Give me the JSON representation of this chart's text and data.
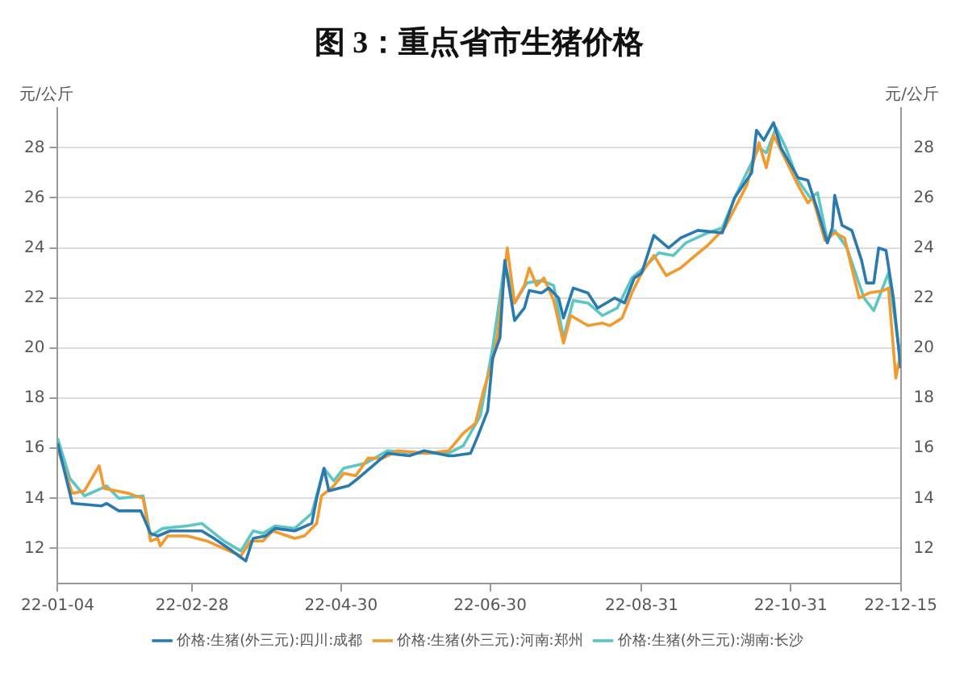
{
  "chart_data": {
    "type": "line",
    "title": "图 3：重点省市生猪价格",
    "ylabel": "元/公斤",
    "y2label": "元/公斤",
    "xlim": [
      "--01-04",
      "--12-15"
    ],
    "xticks": [
      {
        "value": "--01-04",
        "label": "22-01-04"
      },
      {
        "value": "--02-28",
        "label": "22-02-28"
      },
      {
        "value": "--04-30",
        "label": "22-04-30"
      },
      {
        "value": "--06-30",
        "label": "22-06-30"
      },
      {
        "value": "--08-31",
        "label": "22-08-31"
      },
      {
        "value": "--10-31",
        "label": "22-10-31"
      },
      {
        "value": "--12-15",
        "label": "22-12-15"
      }
    ],
    "ylim": [
      10.6,
      29.6
    ],
    "yticks": [
      12,
      14,
      16,
      18,
      20,
      22,
      24,
      26,
      28
    ],
    "y2lim": [
      10.6,
      29.6
    ],
    "y2ticks": [
      12,
      14,
      16,
      18,
      20,
      22,
      24,
      26,
      28
    ],
    "grid": "y",
    "legend": "bottom",
    "marker": "none",
    "line_style": "solid",
    "series": [
      {
        "name": "价格:生猪(外三元):四川:成都",
        "color": "#2a7ab0",
        "x": [
          "--01-04",
          "--01-10",
          "--01-22",
          "--01-24",
          "--01-29",
          "--02-07",
          "--02-11",
          "--02-14",
          "--02-19",
          "--03-04",
          "--03-09",
          "--03-15",
          "--03-22",
          "--03-25",
          "--03-30",
          "--04-03",
          "--04-11",
          "--04-18",
          "--04-20",
          "--04-23",
          "--04-25",
          "--05-03",
          "--05-07",
          "--05-13",
          "--05-19",
          "--05-28",
          "--06-03",
          "--06-13",
          "--06-15",
          "--06-22",
          "--06-25",
          "--06-29",
          "--07-01",
          "--07-04",
          "--07-06",
          "--07-10",
          "--07-14",
          "--07-16",
          "--07-21",
          "--07-24",
          "--07-28",
          "--07-30",
          "--08-03",
          "--08-09",
          "--08-13",
          "--08-20",
          "--08-24",
          "--08-28",
          "--08-31",
          "--09-05",
          "--09-11",
          "--09-16",
          "--09-23",
          "--10-03",
          "--10-08",
          "--10-15",
          "--10-17",
          "--10-20",
          "--10-24",
          "--10-27",
          "--11-03",
          "--11-07",
          "--11-11",
          "--11-15",
          "--11-17",
          "--11-18",
          "--11-21",
          "--11-25",
          "--11-29",
          "--12-01",
          "--12-04",
          "--12-06",
          "--12-09",
          "--12-12",
          "--12-15"
        ],
        "values": [
          16.2,
          13.8,
          13.7,
          13.8,
          13.5,
          13.5,
          12.6,
          12.5,
          12.7,
          12.7,
          12.4,
          12.0,
          11.5,
          12.4,
          12.5,
          12.8,
          12.7,
          13.0,
          14.0,
          15.2,
          14.3,
          14.5,
          14.8,
          15.3,
          15.8,
          15.7,
          15.9,
          15.7,
          15.7,
          15.8,
          16.5,
          17.5,
          19.6,
          20.4,
          23.5,
          21.1,
          21.6,
          22.3,
          22.2,
          22.4,
          22.0,
          21.2,
          22.4,
          22.2,
          21.6,
          22.0,
          21.8,
          22.8,
          23.0,
          24.5,
          24.0,
          24.4,
          24.7,
          24.6,
          26.0,
          27.0,
          28.7,
          28.3,
          29.0,
          28.0,
          26.8,
          26.7,
          25.5,
          24.2,
          24.8,
          26.1,
          24.9,
          24.7,
          23.5,
          22.6,
          22.6,
          24.0,
          23.9,
          22.0,
          19.2
        ]
      },
      {
        "name": "价格:生猪(外三元):河南:郑州",
        "color": "#f39a2e",
        "x": [
          "--01-04",
          "--01-10",
          "--01-15",
          "--01-21",
          "--01-23",
          "--02-02",
          "--02-08",
          "--02-11",
          "--02-14",
          "--02-15",
          "--02-18",
          "--02-26",
          "--03-06",
          "--03-13",
          "--03-20",
          "--03-24",
          "--03-29",
          "--04-02",
          "--04-11",
          "--04-15",
          "--04-20",
          "--04-22",
          "--04-27",
          "--05-01",
          "--05-06",
          "--05-11",
          "--05-17",
          "--05-23",
          "--06-04",
          "--06-13",
          "--06-19",
          "--06-24",
          "--06-27",
          "--07-01",
          "--07-03",
          "--07-07",
          "--07-10",
          "--07-14",
          "--07-16",
          "--07-19",
          "--07-22",
          "--07-26",
          "--07-30",
          "--08-02",
          "--08-09",
          "--08-15",
          "--08-18",
          "--08-23",
          "--08-27",
          "--08-31",
          "--09-05",
          "--09-10",
          "--09-16",
          "--09-22",
          "--09-27",
          "--10-04",
          "--10-13",
          "--10-18",
          "--10-21",
          "--10-24",
          "--10-29",
          "--11-03",
          "--11-07",
          "--11-09",
          "--11-14",
          "--11-18",
          "--11-22",
          "--11-28",
          "--12-02",
          "--12-08",
          "--12-10",
          "--12-13",
          "--12-15"
        ],
        "values": [
          16.0,
          14.2,
          14.3,
          15.3,
          14.4,
          14.2,
          14.0,
          12.3,
          12.4,
          12.1,
          12.5,
          12.5,
          12.3,
          12.0,
          11.7,
          12.3,
          12.3,
          12.7,
          12.4,
          12.5,
          13.0,
          14.1,
          14.5,
          15.0,
          14.9,
          15.6,
          15.6,
          15.9,
          15.8,
          15.9,
          16.6,
          17.0,
          18.2,
          19.5,
          20.5,
          24.0,
          21.8,
          22.5,
          23.2,
          22.5,
          22.8,
          21.9,
          20.2,
          21.3,
          20.9,
          21.0,
          20.9,
          21.2,
          22.2,
          23.0,
          23.7,
          22.9,
          23.2,
          23.7,
          24.1,
          24.8,
          26.5,
          28.2,
          27.2,
          28.5,
          27.5,
          26.5,
          25.8,
          26.0,
          24.3,
          24.6,
          24.4,
          22.0,
          22.2,
          22.3,
          22.4,
          18.8,
          19.8
        ]
      },
      {
        "name": "价格:生猪(外三元):湖南:长沙",
        "color": "#5cc6c4",
        "x": [
          "--01-04",
          "--01-09",
          "--01-15",
          "--01-22",
          "--01-24",
          "--01-29",
          "--02-08",
          "--02-11",
          "--02-16",
          "--02-26",
          "--03-04",
          "--03-13",
          "--03-20",
          "--03-25",
          "--03-29",
          "--04-03",
          "--04-11",
          "--04-18",
          "--04-23",
          "--04-27",
          "--05-01",
          "--05-10",
          "--05-19",
          "--05-31",
          "--06-13",
          "--06-19",
          "--06-26",
          "--07-01",
          "--07-06",
          "--07-10",
          "--07-15",
          "--07-21",
          "--07-26",
          "--07-30",
          "--08-03",
          "--08-09",
          "--08-15",
          "--08-21",
          "--08-27",
          "--09-02",
          "--09-07",
          "--09-13",
          "--09-18",
          "--09-27",
          "--10-03",
          "--10-09",
          "--10-18",
          "--10-21",
          "--10-25",
          "--10-29",
          "--11-03",
          "--11-08",
          "--11-11",
          "--11-15",
          "--11-18",
          "--11-23",
          "--11-30",
          "--12-04",
          "--12-08",
          "--12-10",
          "--12-15"
        ],
        "values": [
          16.4,
          14.8,
          14.1,
          14.4,
          14.5,
          14.0,
          14.1,
          12.5,
          12.8,
          12.9,
          13.0,
          12.3,
          11.9,
          12.7,
          12.6,
          12.9,
          12.8,
          13.4,
          15.2,
          14.7,
          15.2,
          15.4,
          15.9,
          15.8,
          15.8,
          16.1,
          17.3,
          20.0,
          23.4,
          21.8,
          22.6,
          22.7,
          22.5,
          20.4,
          21.9,
          21.8,
          21.3,
          21.6,
          22.8,
          23.3,
          23.8,
          23.7,
          24.2,
          24.6,
          24.8,
          26.2,
          28.0,
          27.8,
          28.8,
          28.0,
          26.7,
          26.0,
          26.2,
          24.3,
          24.7,
          24.0,
          22.0,
          21.5,
          22.5,
          23.0,
          19.5
        ]
      }
    ]
  }
}
